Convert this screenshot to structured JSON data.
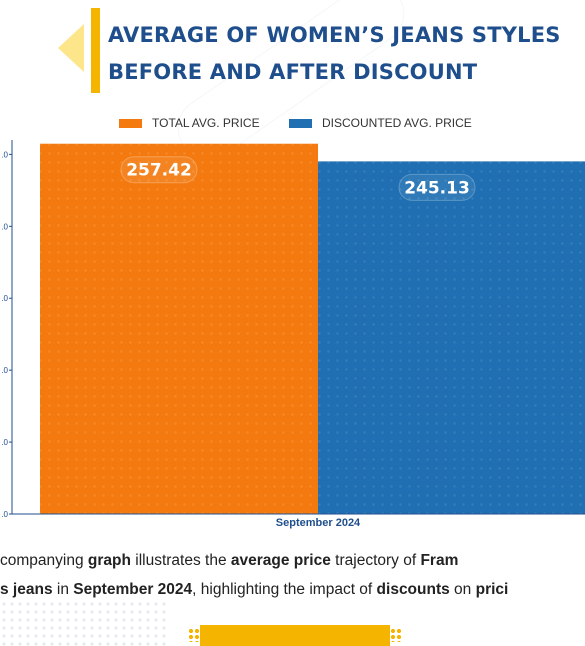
{
  "header": {
    "title_line1": "AVERAGE OF WOMEN’S JEANS STYLES",
    "title_line2": "BEFORE AND AFTER DISCOUNT"
  },
  "chart_data": {
    "type": "bar",
    "categories": [
      "September 2024"
    ],
    "series": [
      {
        "name": "TOTAL AVG. PRICE",
        "values": [
          257.42
        ],
        "color": "#f47a10",
        "label": "257.42"
      },
      {
        "name": "DISCOUNTED AVG. PRICE",
        "values": [
          245.13
        ],
        "color": "#1f6fb2",
        "label": "245.13"
      }
    ],
    "y_tick_labels": [
      ".0",
      ".0",
      ".0",
      ".0",
      ".0",
      ".0"
    ],
    "y_tick_values": [
      0,
      50,
      100,
      150,
      200,
      250
    ],
    "ylim": [
      0,
      260
    ],
    "legend_position": "top-center",
    "grid": false
  },
  "description": {
    "line1": [
      {
        "t": "companying ",
        "b": false
      },
      {
        "t": "graph",
        "b": true
      },
      {
        "t": " illustrates the ",
        "b": false
      },
      {
        "t": "average price",
        "b": true
      },
      {
        "t": " trajectory of ",
        "b": false
      },
      {
        "t": "Fram",
        "b": true
      }
    ],
    "line2": [
      {
        "t": "s jeans",
        "b": true
      },
      {
        "t": " in ",
        "b": false
      },
      {
        "t": "September 2024",
        "b": true
      },
      {
        "t": ", highlighting the impact of ",
        "b": false
      },
      {
        "t": "discounts",
        "b": true
      },
      {
        "t": " on ",
        "b": false
      },
      {
        "t": "prici",
        "b": true
      }
    ]
  },
  "colors": {
    "title": "#1f4e8c",
    "accent": "#f5b400",
    "axis": "#1f4e8c"
  }
}
